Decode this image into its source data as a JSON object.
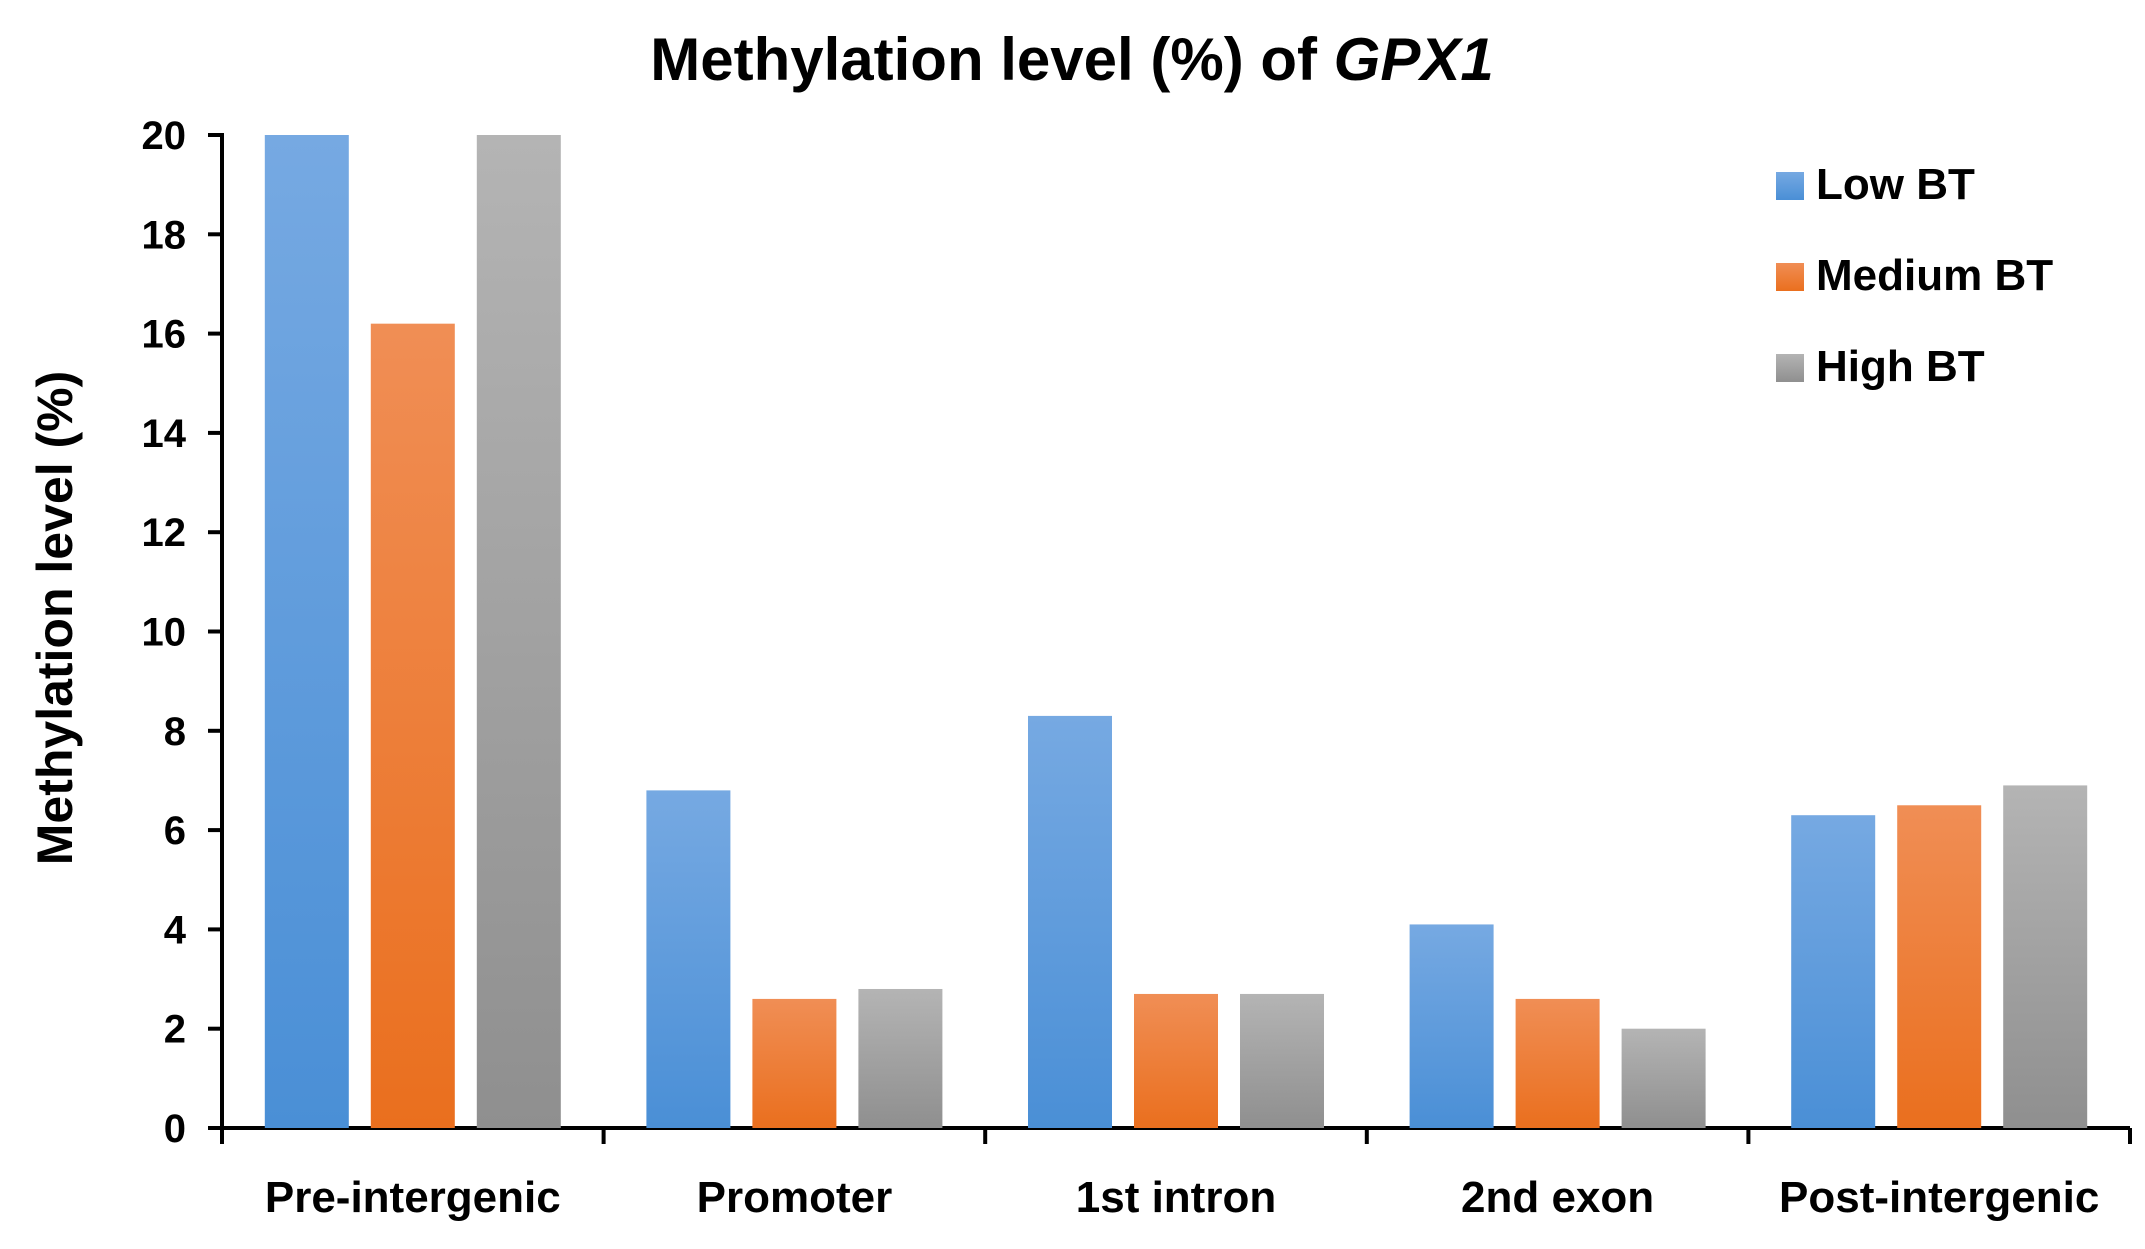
{
  "chart_data": {
    "type": "bar",
    "title": "Methylation level (%) of",
    "title_gene": "GPX1",
    "xlabel": "",
    "ylabel": "Methylation level (%)",
    "ylim": [
      0,
      20
    ],
    "yticks": [
      0,
      2,
      4,
      6,
      8,
      10,
      12,
      14,
      16,
      18,
      20
    ],
    "categories": [
      "Pre-intergenic",
      "Promoter",
      "1st intron",
      "2nd exon",
      "Post-intergenic"
    ],
    "series": [
      {
        "name": "Low BT",
        "color": "#4a8fd6",
        "color_light": "#76a9e2",
        "values": [
          20.0,
          6.8,
          8.3,
          4.1,
          6.3
        ]
      },
      {
        "name": "Medium BT",
        "color": "#ea6f1e",
        "color_light": "#f08e55",
        "values": [
          16.2,
          2.6,
          2.7,
          2.6,
          6.5
        ]
      },
      {
        "name": "High BT",
        "color": "#8f8f8f",
        "color_light": "#b4b4b4",
        "values": [
          20.0,
          2.8,
          2.7,
          2.0,
          6.9
        ]
      }
    ],
    "legend_position": "top-right",
    "grid": false
  }
}
